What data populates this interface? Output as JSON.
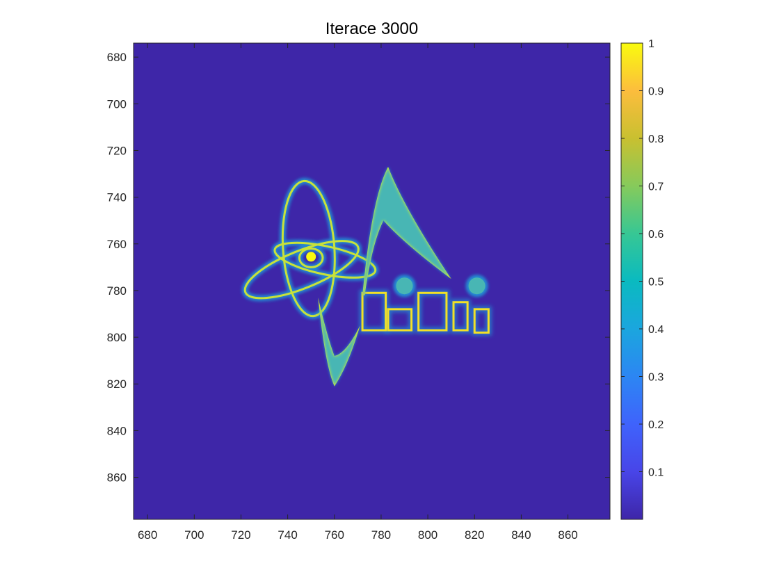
{
  "chart_data": {
    "type": "heatmap",
    "title": "Iterace 3000",
    "xlabel": "",
    "ylabel": "",
    "xlim": [
      674,
      878
    ],
    "ylim": [
      674,
      878
    ],
    "y_direction": "reversed",
    "xticks": [
      680,
      700,
      720,
      740,
      760,
      780,
      800,
      820,
      840,
      860
    ],
    "yticks": [
      680,
      700,
      720,
      740,
      760,
      780,
      800,
      820,
      840,
      860
    ],
    "colormap": "parula",
    "colorbar": {
      "min": 0,
      "max": 1,
      "ticks": [
        0.1,
        0.2,
        0.3,
        0.4,
        0.5,
        0.6,
        0.7,
        0.8,
        0.9,
        1
      ],
      "tick_labels": [
        "0.1",
        "0.2",
        "0.3",
        "0.4",
        "0.5",
        "0.6",
        "0.7",
        "0.8",
        "0.9",
        "1"
      ],
      "location": "right"
    },
    "background_value": 0.0
  }
}
